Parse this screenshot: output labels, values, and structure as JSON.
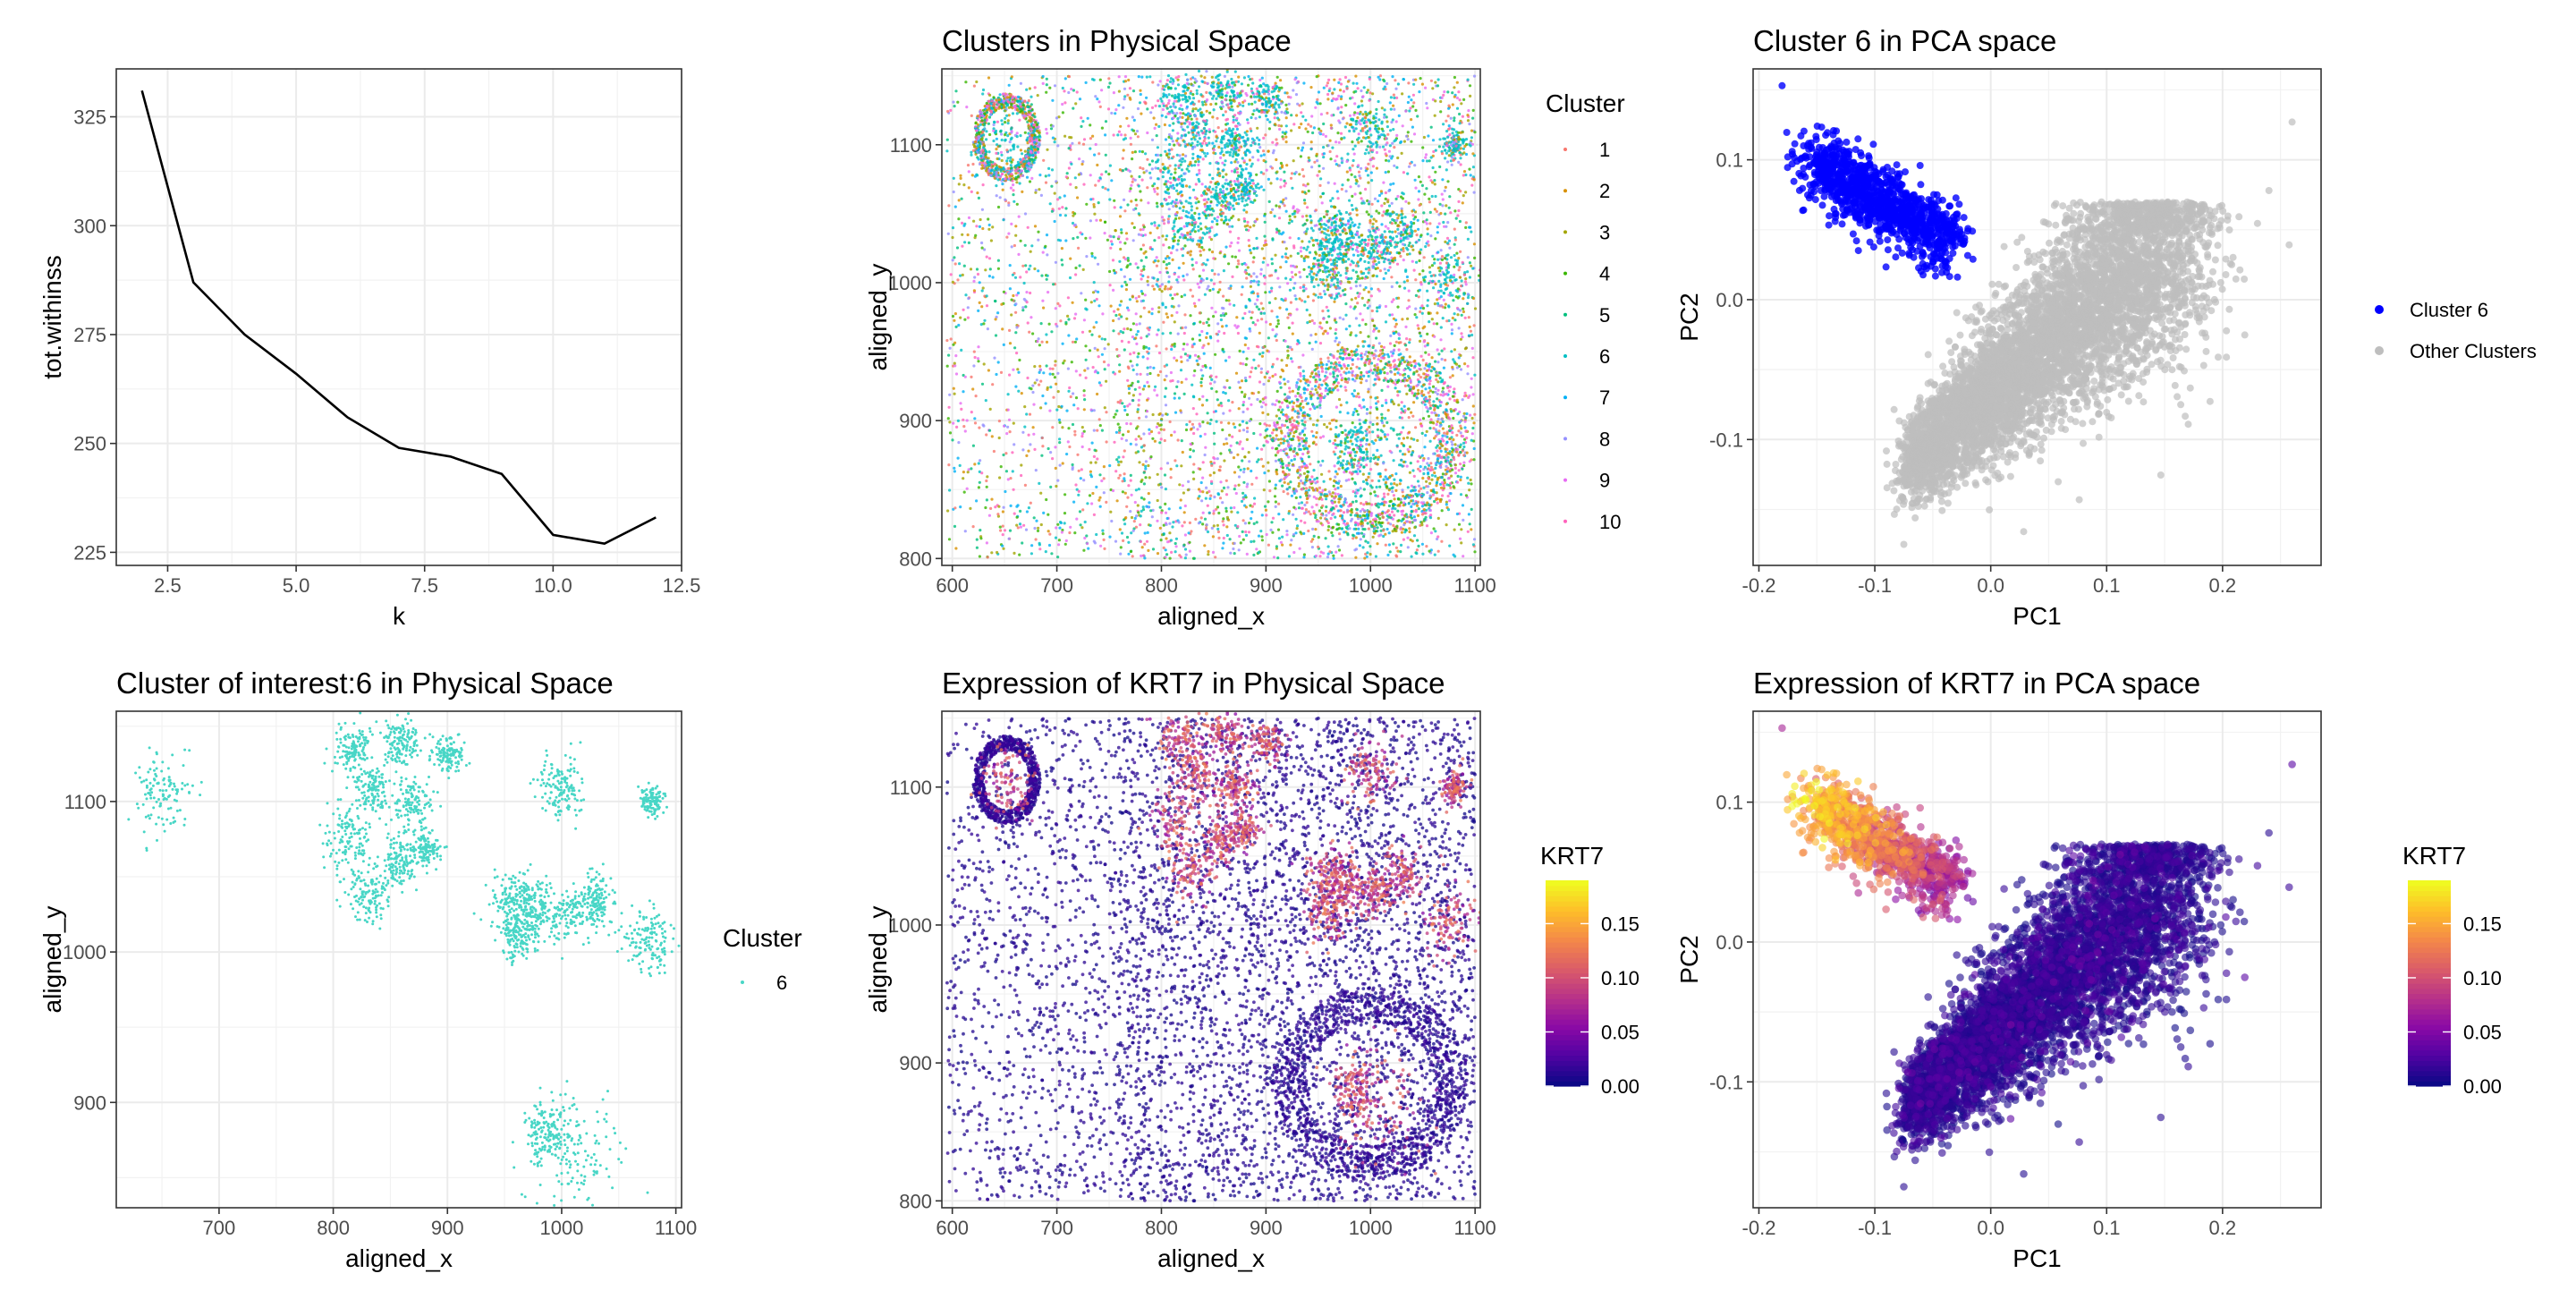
{
  "colors": {
    "cluster": [
      "#F8766D",
      "#D39200",
      "#93AA00",
      "#00BA38",
      "#00C19F",
      "#00B9E3",
      "#619CFF",
      "#DB72FB",
      "#FF61C3",
      "#F8766D"
    ],
    "cluster_palette": {
      "1": "#F8766D",
      "2": "#C49A00",
      "3": "#53B400",
      "4": "#00B6EB",
      "5": "#00C094",
      "6": "#00BFC4",
      "7": "#00A9FF",
      "8": "#A58AFF",
      "9": "#FB61D7",
      "10": "#F8766D"
    },
    "cluster6_turquoise": "#48D6C6",
    "highlight": "#0000FF",
    "other": "#BEBEBE",
    "plasma": [
      "#0D0887",
      "#5302A3",
      "#8B0AA5",
      "#B83289",
      "#DB5C68",
      "#F48849",
      "#FEBC2A",
      "#F0F921"
    ]
  },
  "chart_data": [
    {
      "id": "elbow",
      "type": "line",
      "title": "",
      "xlabel": "k",
      "ylabel": "tot.withinss",
      "x": [
        2,
        3,
        4,
        5,
        6,
        7,
        8,
        9,
        10,
        11,
        12
      ],
      "y": [
        331,
        287,
        275,
        266,
        256,
        249,
        247,
        243,
        229,
        227,
        233
      ],
      "xlim": [
        1.5,
        12.5
      ],
      "ylim": [
        222,
        336
      ],
      "xticks": [
        "2.5",
        "5.0",
        "7.5",
        "10.0",
        "12.5"
      ],
      "xtick_values": [
        2.5,
        5,
        7.5,
        10,
        12.5
      ],
      "yticks": [
        "225",
        "250",
        "275",
        "300",
        "325"
      ],
      "ytick_values": [
        225,
        250,
        275,
        300,
        325
      ],
      "grid": true
    },
    {
      "id": "clusters_physical",
      "type": "scatter",
      "title": "Clusters in Physical Space",
      "xlabel": "aligned_x",
      "ylabel": "aligned_y",
      "xlim": [
        590,
        1105
      ],
      "ylim": [
        795,
        1155
      ],
      "xticks": [
        "600",
        "700",
        "800",
        "900",
        "1000",
        "1100"
      ],
      "xtick_values": [
        600,
        700,
        800,
        900,
        1000,
        1100
      ],
      "yticks": [
        "800",
        "900",
        "1000",
        "1100"
      ],
      "ytick_values": [
        800,
        900,
        1000,
        1100
      ],
      "legend_title": "Cluster",
      "legend": [
        "1",
        "2",
        "3",
        "4",
        "5",
        "6",
        "7",
        "8",
        "9",
        "10"
      ],
      "legend_position": "right",
      "grid": true
    },
    {
      "id": "cluster6_pca",
      "type": "scatter",
      "title": "Cluster 6 in PCA space",
      "xlabel": "PC1",
      "ylabel": "PC2",
      "xlim": [
        -0.205,
        0.285
      ],
      "ylim": [
        -0.19,
        0.165
      ],
      "xticks": [
        "-0.2",
        "-0.1",
        "0.0",
        "0.1",
        "0.2"
      ],
      "xtick_values": [
        -0.2,
        -0.1,
        0.0,
        0.1,
        0.2
      ],
      "yticks": [
        "-0.1",
        "0.0",
        "0.1"
      ],
      "ytick_values": [
        -0.1,
        0.0,
        0.1
      ],
      "legend": [
        "Cluster 6",
        "Other Clusters"
      ],
      "legend_position": "right",
      "grid": true
    },
    {
      "id": "cluster_interest_physical",
      "type": "scatter",
      "title": "Cluster of interest:6 in Physical Space",
      "xlabel": "aligned_x",
      "ylabel": "aligned_y",
      "xlim": [
        610,
        1105
      ],
      "ylim": [
        830,
        1160
      ],
      "xticks": [
        "700",
        "800",
        "900",
        "1000",
        "1100"
      ],
      "xtick_values": [
        700,
        800,
        900,
        1000,
        1100
      ],
      "yticks": [
        "900",
        "1000",
        "1100"
      ],
      "ytick_values": [
        900,
        1000,
        1100
      ],
      "legend_title": "Cluster",
      "legend": [
        "6"
      ],
      "legend_position": "right",
      "grid": true
    },
    {
      "id": "krt7_physical",
      "type": "scatter",
      "title": "Expression of KRT7 in Physical Space",
      "xlabel": "aligned_x",
      "ylabel": "aligned_y",
      "xlim": [
        590,
        1105
      ],
      "ylim": [
        795,
        1155
      ],
      "xticks": [
        "600",
        "700",
        "800",
        "900",
        "1000",
        "1100"
      ],
      "xtick_values": [
        600,
        700,
        800,
        900,
        1000,
        1100
      ],
      "yticks": [
        "800",
        "900",
        "1000",
        "1100"
      ],
      "ytick_values": [
        800,
        900,
        1000,
        1100
      ],
      "colorbar_title": "KRT7",
      "colorbar_ticks": [
        "0.00",
        "0.05",
        "0.10",
        "0.15"
      ],
      "colorbar_values": [
        0,
        0.05,
        0.1,
        0.15
      ],
      "colorbar_range": [
        0,
        0.19
      ],
      "legend_position": "right",
      "grid": true
    },
    {
      "id": "krt7_pca",
      "type": "scatter",
      "title": "Expression of KRT7 in PCA space",
      "xlabel": "PC1",
      "ylabel": "PC2",
      "xlim": [
        -0.205,
        0.285
      ],
      "ylim": [
        -0.19,
        0.165
      ],
      "xticks": [
        "-0.2",
        "-0.1",
        "0.0",
        "0.1",
        "0.2"
      ],
      "xtick_values": [
        -0.2,
        -0.1,
        0.0,
        0.1,
        0.2
      ],
      "yticks": [
        "-0.1",
        "0.0",
        "0.1"
      ],
      "ytick_values": [
        -0.1,
        0.0,
        0.1
      ],
      "colorbar_title": "KRT7",
      "colorbar_ticks": [
        "0.00",
        "0.05",
        "0.10",
        "0.15"
      ],
      "colorbar_values": [
        0,
        0.05,
        0.1,
        0.15
      ],
      "colorbar_range": [
        0,
        0.19
      ],
      "legend_position": "right",
      "grid": true
    }
  ]
}
